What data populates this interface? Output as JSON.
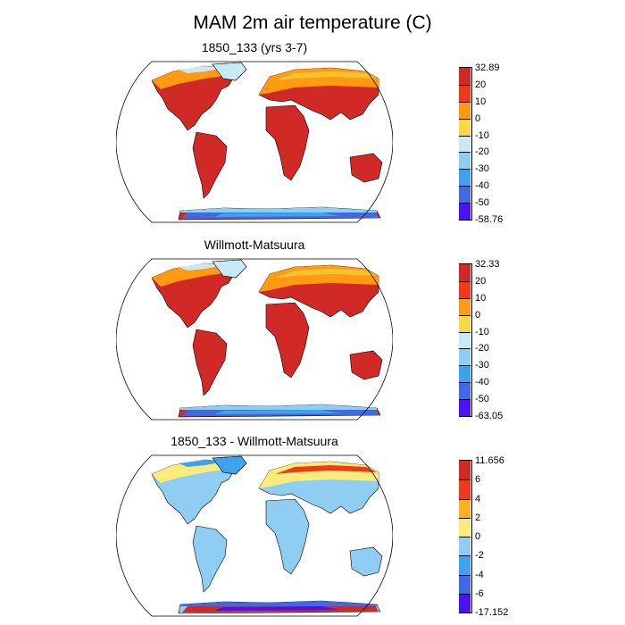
{
  "figure": {
    "title": "MAM 2m air temperature (C)"
  },
  "panels": [
    {
      "title": "1850_133 (yrs 3-7)",
      "colors": [
        "#4c12f4",
        "#3e6ae4",
        "#3ca3f0",
        "#8fcdf2",
        "#c7eaf6",
        "#fbd847",
        "#ff9a12",
        "#f03b1b",
        "#d12a26"
      ],
      "labels": [
        "32.89",
        "20",
        "10",
        "0",
        "-10",
        "-20",
        "-30",
        "-40",
        "-50",
        "-58.76"
      ],
      "fill": {
        "land": "#d12a26",
        "north": [
          "#ff9a12",
          "#f7c232",
          "#c7eaf6"
        ],
        "south": [
          "#3e6ae4",
          "#3ca3f0",
          "#8fcdf2"
        ]
      }
    },
    {
      "title": "Willmott-Matsuura",
      "colors": [
        "#4c12f4",
        "#3e6ae4",
        "#3ca3f0",
        "#8fcdf2",
        "#c7eaf6",
        "#fbd847",
        "#ff9a12",
        "#f03b1b",
        "#d12a26"
      ],
      "labels": [
        "32.33",
        "20",
        "10",
        "0",
        "-10",
        "-20",
        "-30",
        "-40",
        "-50",
        "-63.05"
      ],
      "fill": {
        "land": "#d12a26",
        "north": [
          "#ff9a12",
          "#f7c232",
          "#c7eaf6"
        ],
        "south": [
          "#3e6ae4",
          "#3ca3f0",
          "#8fcdf2"
        ]
      }
    },
    {
      "title": "1850_133 - Willmott-Matsuura",
      "colors": [
        "#4c12f4",
        "#3e6ae4",
        "#3ca3f0",
        "#8fcdf2",
        "#fbeb7a",
        "#ffb020",
        "#f03b1b",
        "#d12a26"
      ],
      "labels": [
        "11.656",
        "6",
        "4",
        "2",
        "0",
        "-2",
        "-4",
        "-6",
        "-17.152"
      ],
      "fill": {
        "land": "#8fcdf2",
        "north": [
          "#fbeb7a",
          "#f03b1b",
          "#3ca3f0"
        ],
        "south": [
          "#d12a26",
          "#4c12f4",
          "#3e6ae4"
        ]
      }
    }
  ]
}
